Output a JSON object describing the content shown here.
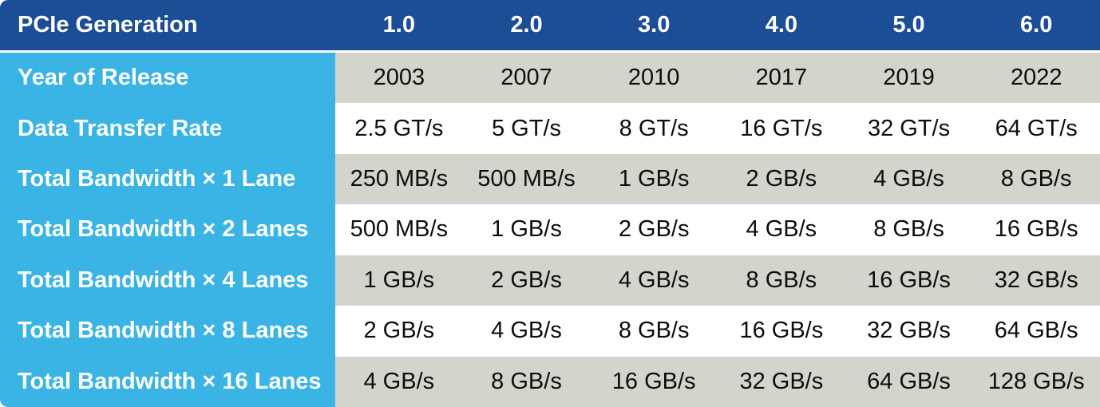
{
  "table": {
    "header": {
      "label": "PCIe Generation",
      "generations": [
        "1.0",
        "2.0",
        "3.0",
        "4.0",
        "5.0",
        "6.0"
      ]
    },
    "rows": [
      {
        "label": "Year of Release",
        "values": [
          "2003",
          "2007",
          "2010",
          "2017",
          "2019",
          "2022"
        ]
      },
      {
        "label": "Data Transfer Rate",
        "values": [
          "2.5 GT/s",
          "5 GT/s",
          "8 GT/s",
          "16 GT/s",
          "32 GT/s",
          "64 GT/s"
        ]
      },
      {
        "label": "Total Bandwidth × 1 Lane",
        "values": [
          "250 MB/s",
          "500 MB/s",
          "1 GB/s",
          "2 GB/s",
          "4 GB/s",
          "8 GB/s"
        ]
      },
      {
        "label": "Total Bandwidth × 2 Lanes",
        "values": [
          "500 MB/s",
          "1 GB/s",
          "2 GB/s",
          "4 GB/s",
          "8 GB/s",
          "16 GB/s"
        ]
      },
      {
        "label": "Total Bandwidth × 4 Lanes",
        "values": [
          "1 GB/s",
          "2 GB/s",
          "4 GB/s",
          "8 GB/s",
          "16 GB/s",
          "32 GB/s"
        ]
      },
      {
        "label": "Total Bandwidth × 8 Lanes",
        "values": [
          "2 GB/s",
          "4 GB/s",
          "8 GB/s",
          "16 GB/s",
          "32 GB/s",
          "64 GB/s"
        ]
      },
      {
        "label": "Total Bandwidth × 16 Lanes",
        "values": [
          "4 GB/s",
          "8 GB/s",
          "16 GB/s",
          "32 GB/s",
          "64 GB/s",
          "128 GB/s"
        ]
      }
    ]
  },
  "colors": {
    "header_bg": "#1B4E94",
    "label_column_bg": "#39B4E4",
    "shaded_row_bg": "#D3D5CD",
    "plain_row_bg": "#FFFFFF",
    "header_text": "#FFFFFF",
    "data_text": "#0D0D0D"
  }
}
